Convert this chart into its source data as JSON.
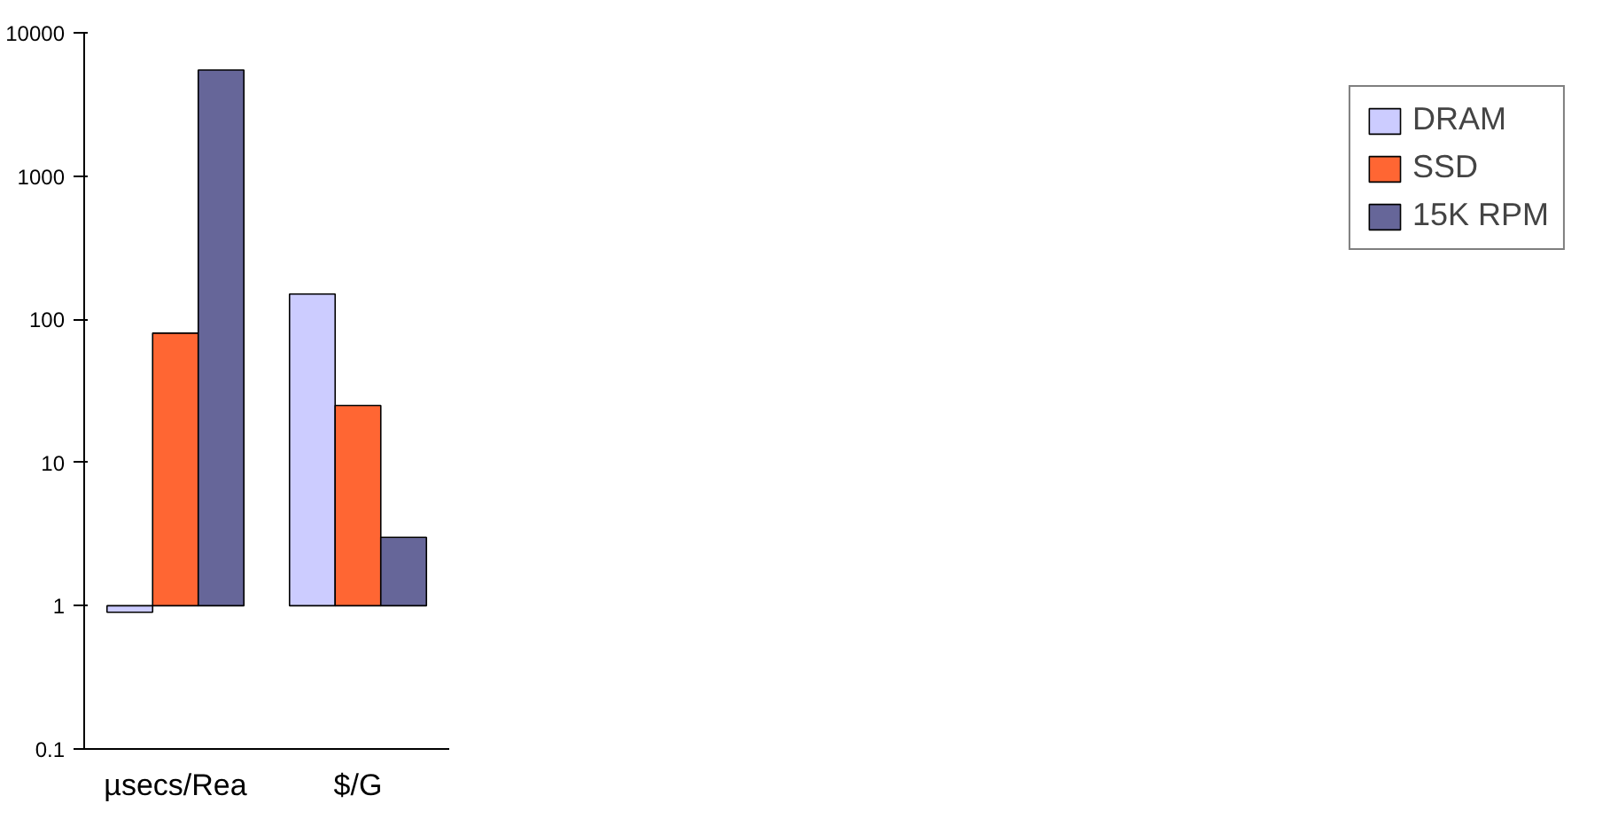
{
  "chart_data": {
    "type": "bar",
    "categories": [
      "µsecs/Rea",
      "$/G"
    ],
    "log": true,
    "ylim": [
      0.1,
      10000
    ],
    "yticks": [
      0.1,
      1,
      10,
      100,
      1000,
      10000
    ],
    "grid": false,
    "legend": "right",
    "series": [
      {
        "name": "DRAM",
        "color": "#ccccff",
        "base": [
          1,
          1
        ],
        "values": [
          -0.1,
          149
        ]
      },
      {
        "name": "SSD",
        "color": "#ff6633",
        "base": [
          1,
          1
        ],
        "values": [
          79,
          24
        ]
      },
      {
        "name": "15K RPM",
        "color": "#666699",
        "base": [
          1,
          1
        ],
        "values": [
          5500,
          2
        ]
      }
    ]
  }
}
